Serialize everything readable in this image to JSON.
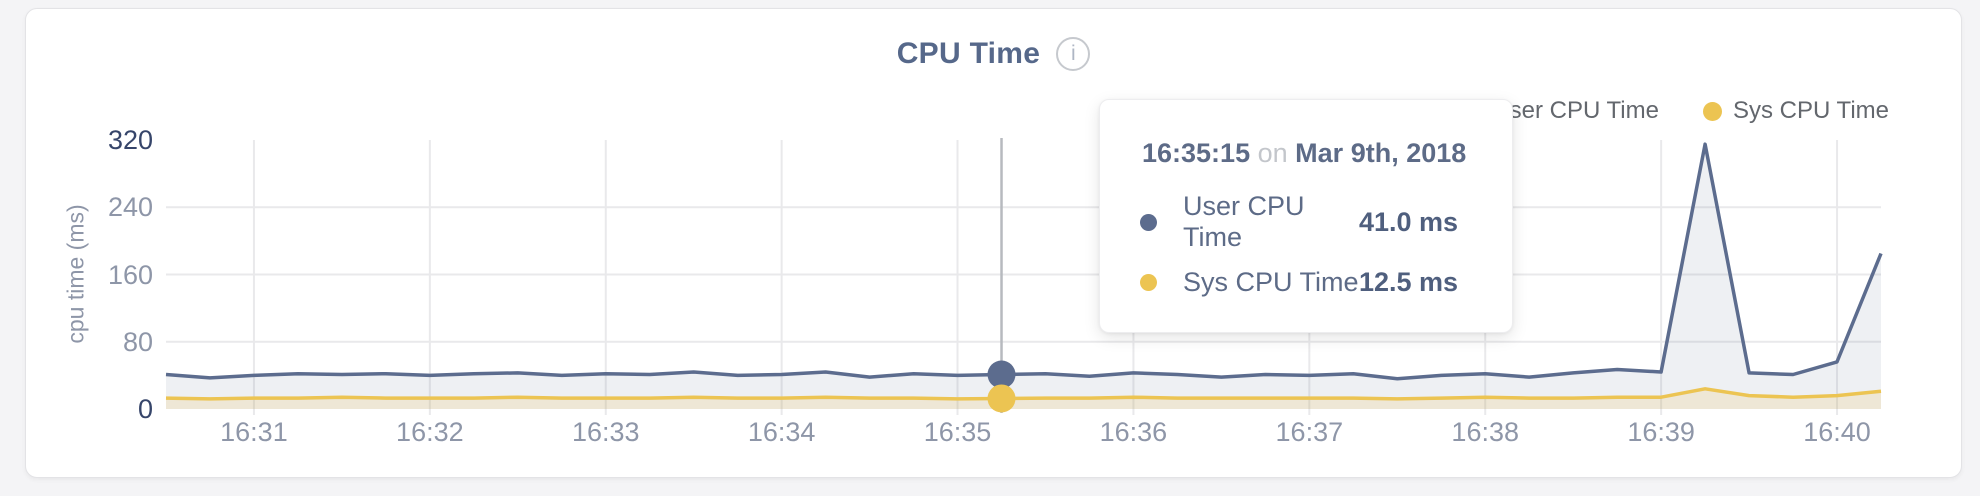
{
  "header": {
    "title": "CPU Time",
    "info_icon": "i"
  },
  "legend": {
    "items": [
      {
        "label": "User CPU Time",
        "color": "#5c6c8e"
      },
      {
        "label": "Sys CPU Time",
        "color": "#ecc452"
      }
    ]
  },
  "tooltip": {
    "time": "16:35:15",
    "conjunction": "on",
    "date": "Mar 9th, 2018",
    "rows": [
      {
        "label": "User CPU Time",
        "value": "41.0 ms",
        "color": "#5c6c8e"
      },
      {
        "label": "Sys CPU Time",
        "value": "12.5 ms",
        "color": "#ecc452"
      }
    ]
  },
  "colors": {
    "page_bg": "#f4f4f6",
    "card_bg": "#ffffff",
    "card_border": "#e3e3e6",
    "title": "#56688a",
    "grid": "#e9e9eb",
    "axis_tick_mid": "#8e96a8",
    "axis_tick_edge": "#36456a",
    "hover_line": "#b7babf",
    "user_line": "#5c6c8e",
    "user_fill": "rgba(92,108,142,0.10)",
    "sys_line": "#ecc452",
    "sys_fill": "rgba(236,196,82,0.18)"
  },
  "chart_data": {
    "type": "area",
    "title": "CPU Time",
    "ylabel": "cpu time (ms)",
    "xlabel": "",
    "ylim": [
      0,
      320
    ],
    "yticks": [
      0,
      80,
      160,
      240,
      320
    ],
    "grid": "on",
    "legend_position": "top-right",
    "x_interval_seconds": 15,
    "times": [
      "16:30:30",
      "16:30:45",
      "16:31:00",
      "16:31:15",
      "16:31:30",
      "16:31:45",
      "16:32:00",
      "16:32:15",
      "16:32:30",
      "16:32:45",
      "16:33:00",
      "16:33:15",
      "16:33:30",
      "16:33:45",
      "16:34:00",
      "16:34:15",
      "16:34:30",
      "16:34:45",
      "16:35:00",
      "16:35:15",
      "16:35:30",
      "16:35:45",
      "16:36:00",
      "16:36:15",
      "16:36:30",
      "16:36:45",
      "16:37:00",
      "16:37:15",
      "16:37:30",
      "16:37:45",
      "16:38:00",
      "16:38:15",
      "16:38:30",
      "16:38:45",
      "16:39:00",
      "16:39:15",
      "16:39:30",
      "16:39:45",
      "16:40:00",
      "16:40:15"
    ],
    "xticks": [
      {
        "label": "16:31",
        "index": 2
      },
      {
        "label": "16:32",
        "index": 6
      },
      {
        "label": "16:33",
        "index": 10
      },
      {
        "label": "16:34",
        "index": 14
      },
      {
        "label": "16:35",
        "index": 18
      },
      {
        "label": "16:36",
        "index": 22
      },
      {
        "label": "16:37",
        "index": 26
      },
      {
        "label": "16:38",
        "index": 30
      },
      {
        "label": "16:39",
        "index": 34
      },
      {
        "label": "16:40",
        "index": 38
      }
    ],
    "series": [
      {
        "name": "User CPU Time",
        "unit": "ms",
        "values": [
          41,
          37,
          40,
          42,
          41,
          42,
          40,
          42,
          43,
          40,
          42,
          41,
          44,
          40,
          41,
          44,
          38,
          42,
          40,
          41,
          42,
          39,
          43,
          41,
          38,
          41,
          40,
          42,
          36,
          40,
          42,
          38,
          43,
          47,
          44,
          315,
          43,
          41,
          56,
          185
        ]
      },
      {
        "name": "Sys CPU Time",
        "unit": "ms",
        "values": [
          13,
          12,
          13,
          13,
          14,
          13,
          13,
          13,
          14,
          13,
          13,
          13,
          14,
          13,
          13,
          14,
          13,
          13,
          12,
          12.5,
          13,
          13,
          14,
          13,
          13,
          13,
          13,
          13,
          12,
          13,
          14,
          13,
          13,
          14,
          14,
          24,
          16,
          14,
          16,
          21
        ]
      }
    ],
    "hover": {
      "index": 19,
      "time": "16:35:15",
      "user_value_ms": 41.0,
      "sys_value_ms": 12.5
    }
  }
}
